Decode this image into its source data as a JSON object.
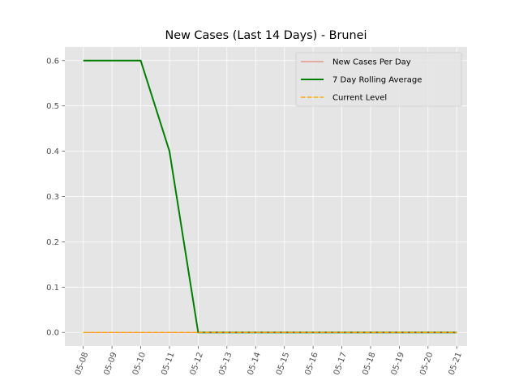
{
  "chart_data": {
    "type": "line",
    "title": "New Cases (Last 14 Days) - Brunei",
    "xlabel": "",
    "ylabel": "",
    "x": [
      "05-08",
      "05-09",
      "05-10",
      "05-11",
      "05-12",
      "05-13",
      "05-14",
      "05-15",
      "05-16",
      "05-17",
      "05-18",
      "05-19",
      "05-20",
      "05-21"
    ],
    "x_tick_labels": [
      "05-08",
      "05-09",
      "05-10",
      "05-11",
      "05-12",
      "05-13",
      "05-14",
      "05-15",
      "05-16",
      "05-17",
      "05-18",
      "05-19",
      "05-20",
      "05-21"
    ],
    "ylim": [
      -0.03,
      0.63
    ],
    "y_ticks": [
      0.0,
      0.1,
      0.2,
      0.3,
      0.4,
      0.5,
      0.6
    ],
    "y_tick_labels": [
      "0.0",
      "0.1",
      "0.2",
      "0.3",
      "0.4",
      "0.5",
      "0.6"
    ],
    "grid": true,
    "legend_position": "top-right",
    "series": [
      {
        "name": "New Cases Per Day",
        "color": "#e24a33",
        "style": "solid-thin",
        "points": [
          [
            "05-08",
            0
          ],
          [
            "05-09",
            0
          ],
          [
            "05-10",
            0
          ],
          [
            "05-11",
            0
          ],
          [
            "05-12",
            0
          ],
          [
            "05-13",
            0
          ],
          [
            "05-14",
            0
          ],
          [
            "05-15",
            0
          ],
          [
            "05-16",
            0
          ],
          [
            "05-17",
            0
          ],
          [
            "05-18",
            0
          ],
          [
            "05-19",
            0
          ],
          [
            "05-20",
            0
          ],
          [
            "05-21",
            0
          ]
        ]
      },
      {
        "name": "7 Day Rolling Average",
        "color": "#008000",
        "style": "solid",
        "points": [
          [
            "05-08",
            0.6
          ],
          [
            "05-09",
            0.6
          ],
          [
            "05-10",
            0.6
          ],
          [
            "05-11",
            0.4
          ],
          [
            "05-12",
            0.0
          ],
          [
            "05-13",
            0.0
          ],
          [
            "05-14",
            0.0
          ],
          [
            "05-15",
            0.0
          ],
          [
            "05-16",
            0.0
          ],
          [
            "05-17",
            0.0
          ],
          [
            "05-18",
            0.0
          ],
          [
            "05-19",
            0.0
          ],
          [
            "05-20",
            0.0
          ],
          [
            "05-21",
            0.0
          ]
        ]
      },
      {
        "name": "Current Level",
        "color": "#ffa500",
        "style": "dashed",
        "points": [
          [
            "05-08",
            0
          ],
          [
            "05-21",
            0
          ]
        ]
      }
    ]
  }
}
